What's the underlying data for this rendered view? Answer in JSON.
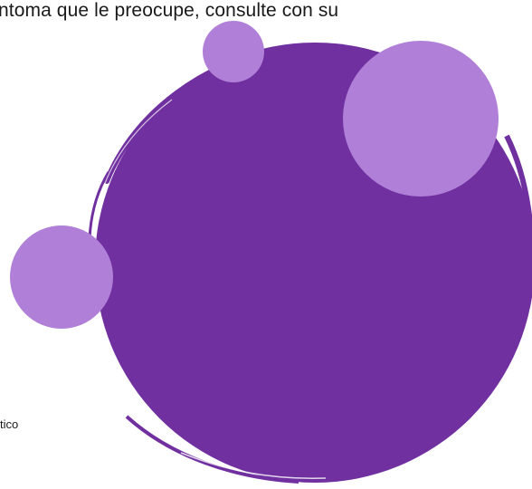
{
  "texts": {
    "top_line": "ntoma que le preocupe, consulte con su",
    "bottom_fragment": "tico"
  }
}
